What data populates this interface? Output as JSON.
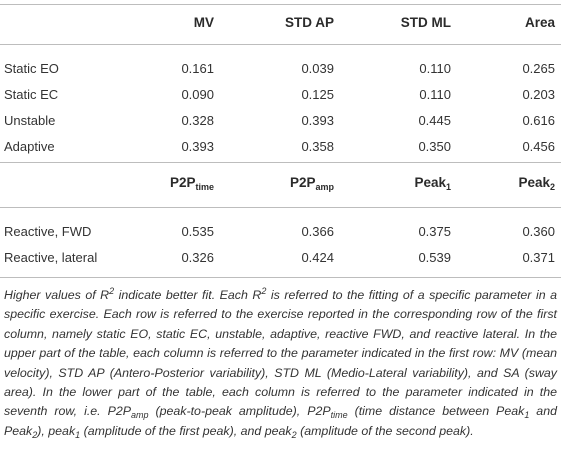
{
  "table": {
    "upper_header": [
      "MV",
      "STD AP",
      "STD ML",
      "Area"
    ],
    "upper_rows": [
      {
        "label": "Static EO",
        "values": [
          "0.161",
          "0.039",
          "0.110",
          "0.265"
        ]
      },
      {
        "label": "Static EC",
        "values": [
          "0.090",
          "0.125",
          "0.110",
          "0.203"
        ]
      },
      {
        "label": "Unstable",
        "values": [
          "0.328",
          "0.393",
          "0.445",
          "0.616"
        ]
      },
      {
        "label": "Adaptive",
        "values": [
          "0.393",
          "0.358",
          "0.350",
          "0.456"
        ]
      }
    ],
    "lower_header": [
      {
        "base": "P2P",
        "sub": "time"
      },
      {
        "base": "P2P",
        "sub": "amp"
      },
      {
        "base": "Peak",
        "sub": "1"
      },
      {
        "base": "Peak",
        "sub": "2"
      }
    ],
    "lower_rows": [
      {
        "label": "Reactive, FWD",
        "values": [
          "0.535",
          "0.366",
          "0.375",
          "0.360"
        ]
      },
      {
        "label": "Reactive, lateral",
        "values": [
          "0.326",
          "0.424",
          "0.539",
          "0.371"
        ]
      }
    ]
  },
  "note": {
    "s1": "Higher values of ",
    "R": "R",
    "sq": "2",
    "s2": " indicate better fit. Each ",
    "s3": " is referred to the fitting of a specific parameter in a specific exercise. Each row is referred to the exercise reported in the corresponding row of the first column, namely static EO, static EC, unstable, adaptive, reactive FWD, and reactive lateral. In the upper part of the table, each column is referred to the parameter indicated in the first row: MV (mean velocity), STD AP (Antero-Posterior variability), STD ML (Medio-Lateral variability), and SA (sway area). In the lower part of the table, each column is referred to the parameter indicated in the seventh row, i.e. P2P",
    "amp": "amp",
    "s4": " (peak-to-peak amplitude), P2P",
    "time": "time",
    "s5": " (time distance between Peak",
    "one": "1",
    "s6": " and Peak",
    "two": "2",
    "s7": "), peak",
    "s8": " (amplitude of the first peak), and peak",
    "s9": " (amplitude of the second peak)."
  }
}
